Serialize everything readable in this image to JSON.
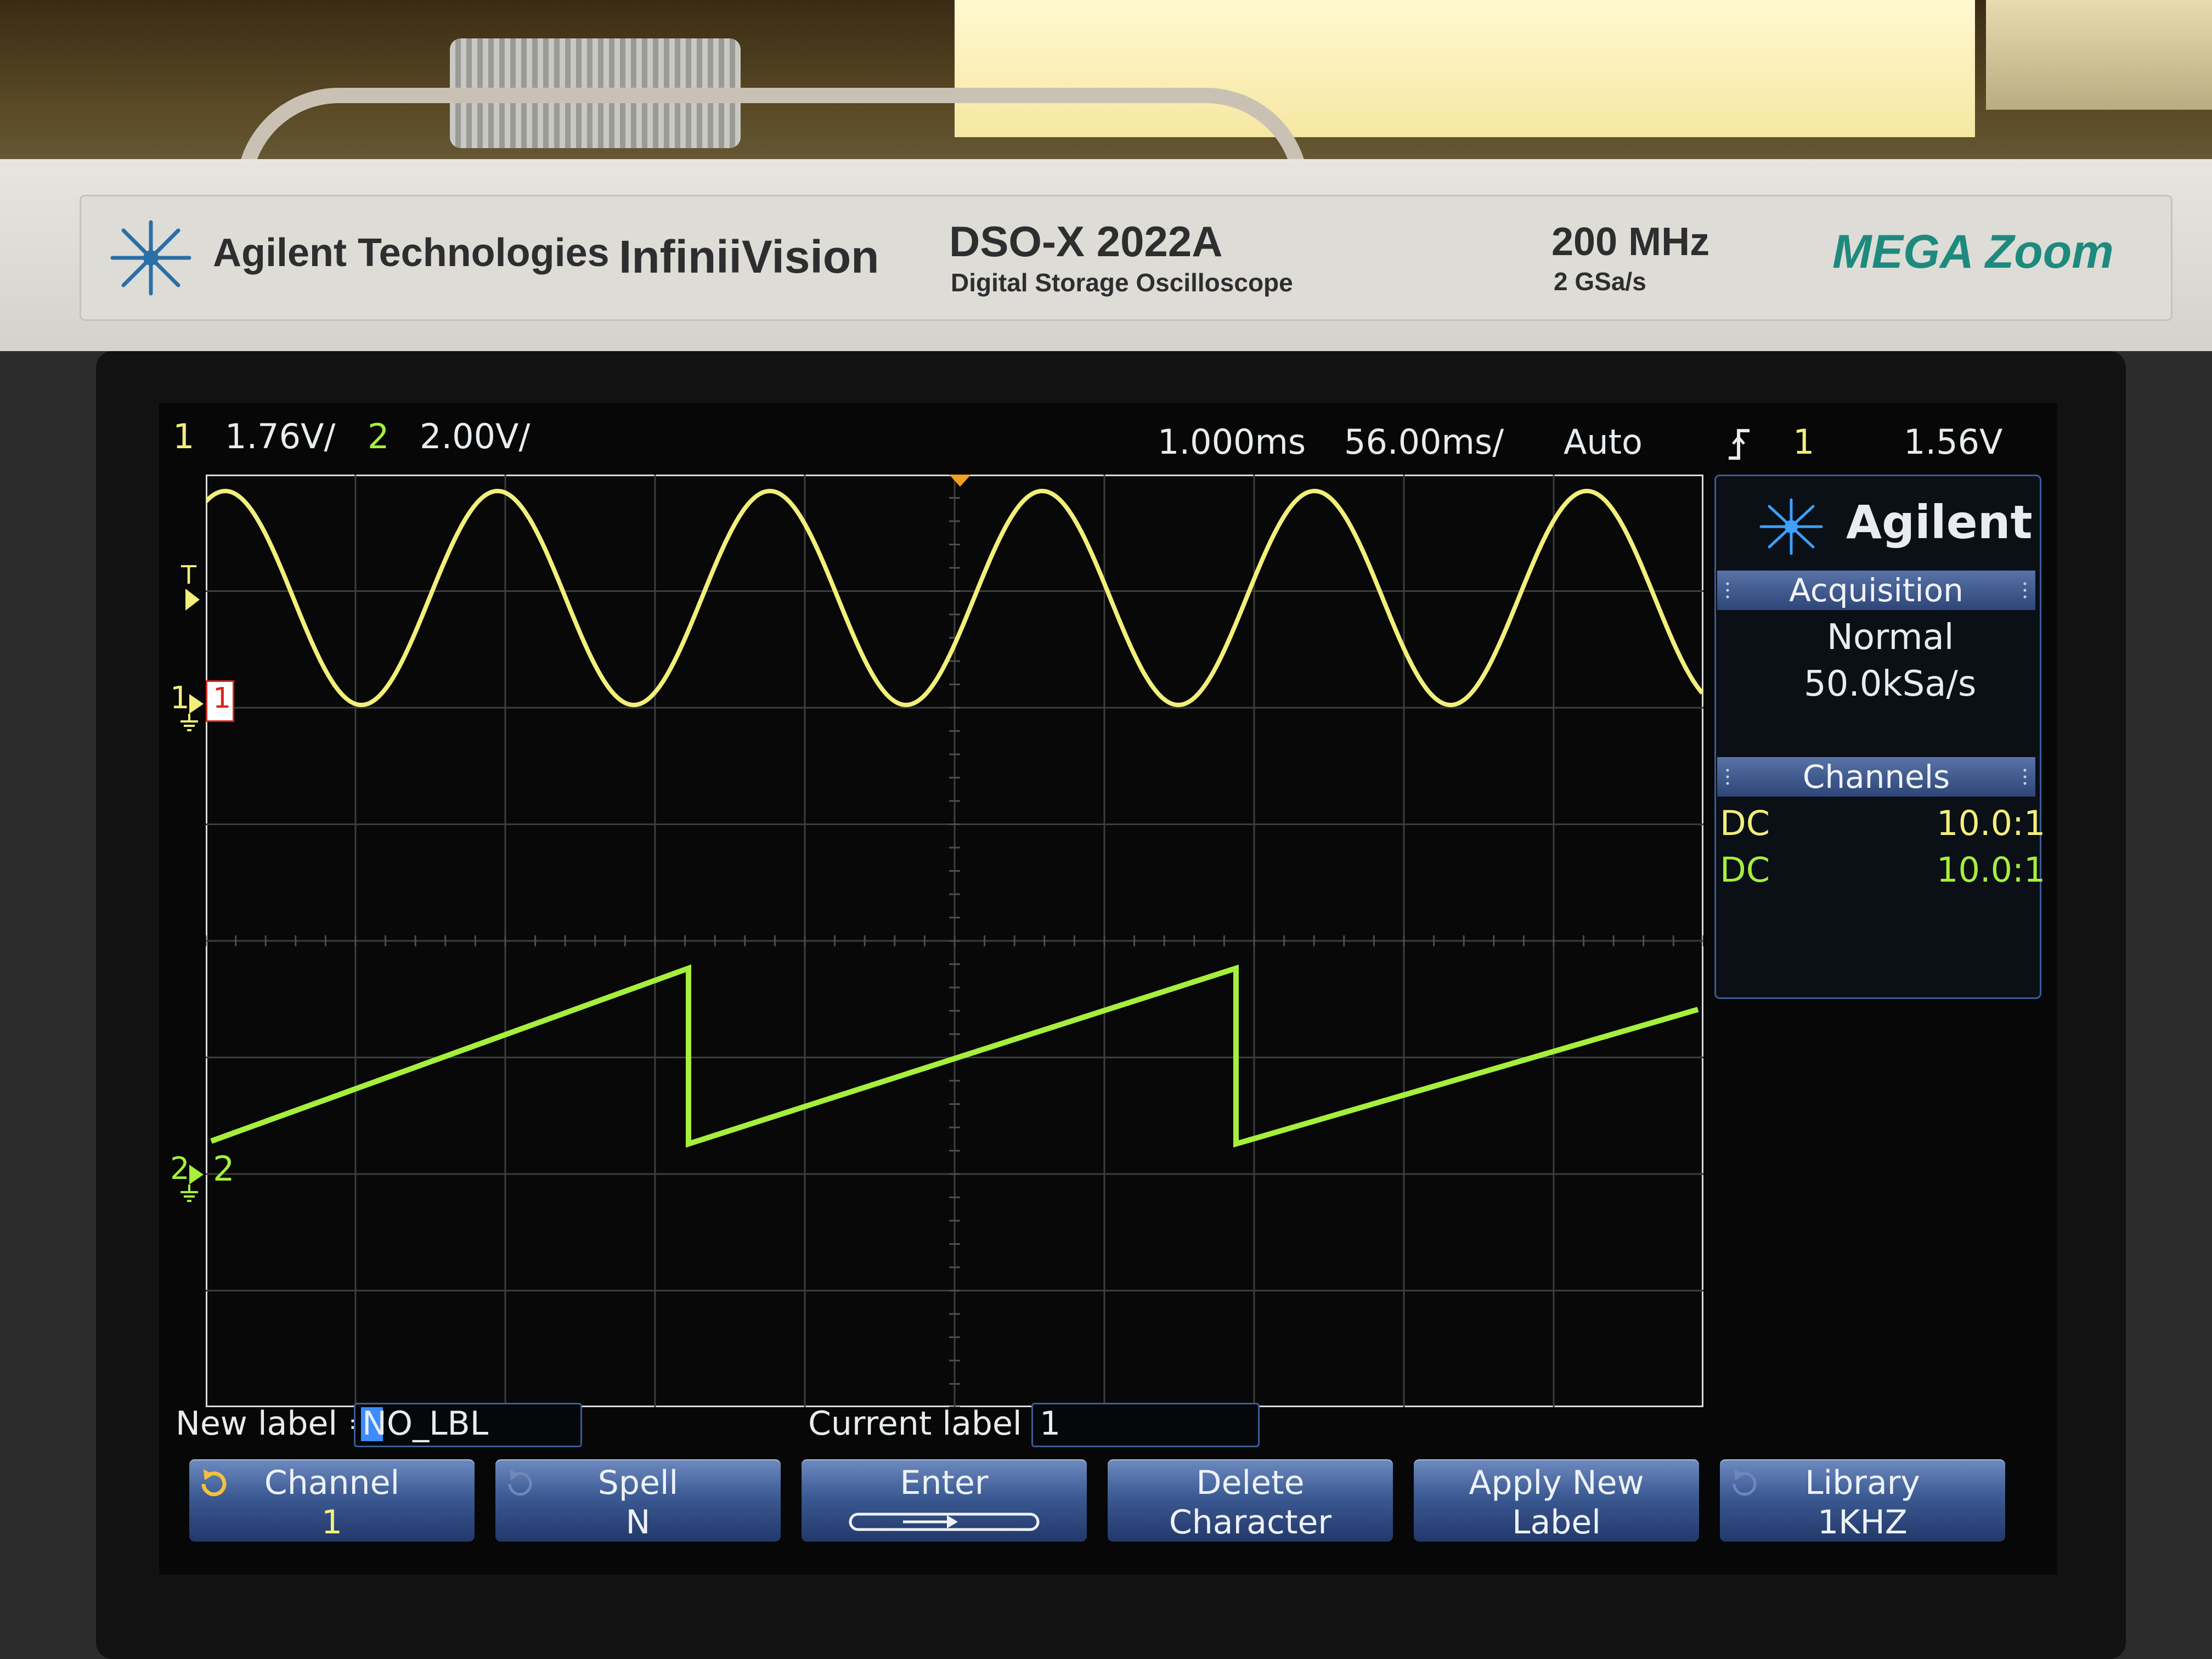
{
  "bezel": {
    "company": "Agilent Technologies",
    "series": "InfiniiVision",
    "model": "DSO-X 2022A",
    "model_desc": "Digital Storage Oscilloscope",
    "bandwidth": "200 MHz",
    "sample_rate": "2 GSa/s",
    "logo_text": "MEGA Zoom"
  },
  "status_bar": {
    "ch1_num": "1",
    "ch1_scale": "1.76V/",
    "ch2_num": "2",
    "ch2_scale": "2.00V/",
    "delay": "1.000ms",
    "timebase": "56.00ms/",
    "trigger_mode": "Auto",
    "trigger_icon": "rising-edge-icon",
    "trigger_source": "1",
    "trigger_level": "1.56V"
  },
  "markers": {
    "trigger": "T",
    "ch1": "1",
    "ch1_box": "1",
    "ch2": "2",
    "ch2_label": "2"
  },
  "side_panel": {
    "brand": "Agilent",
    "acquisition_title": "Acquisition",
    "acquisition_mode": "Normal",
    "acquisition_rate": "50.0kSa/s",
    "channels_title": "Channels",
    "channels": [
      {
        "coupling": "DC",
        "probe": "10.0:1"
      },
      {
        "coupling": "DC",
        "probe": "10.0:1"
      }
    ]
  },
  "label_editor": {
    "new_label_caption": "New label =",
    "new_label_value": "NO_LBL",
    "current_label_caption": "Current label =",
    "current_label_value": "1"
  },
  "softkeys": [
    {
      "line1": "Channel",
      "line2": "1"
    },
    {
      "line1": "Spell",
      "line2": "N"
    },
    {
      "line1": "Enter",
      "line2": ""
    },
    {
      "line1": "Delete",
      "line2": "Character"
    },
    {
      "line1": "Apply New",
      "line2": "Label"
    },
    {
      "line1": "Library",
      "line2": "1KHZ"
    }
  ],
  "colors": {
    "channel1": "#f2ef7a",
    "channel2": "#a6ef3c",
    "softkey": "#3c5a93",
    "screen_bg": "#060706"
  },
  "waveforms": {
    "ch1": {
      "shape": "sine",
      "cycles_visible": 5.5
    },
    "ch2": {
      "shape": "sawtooth",
      "cycles_visible": 2.75
    }
  }
}
